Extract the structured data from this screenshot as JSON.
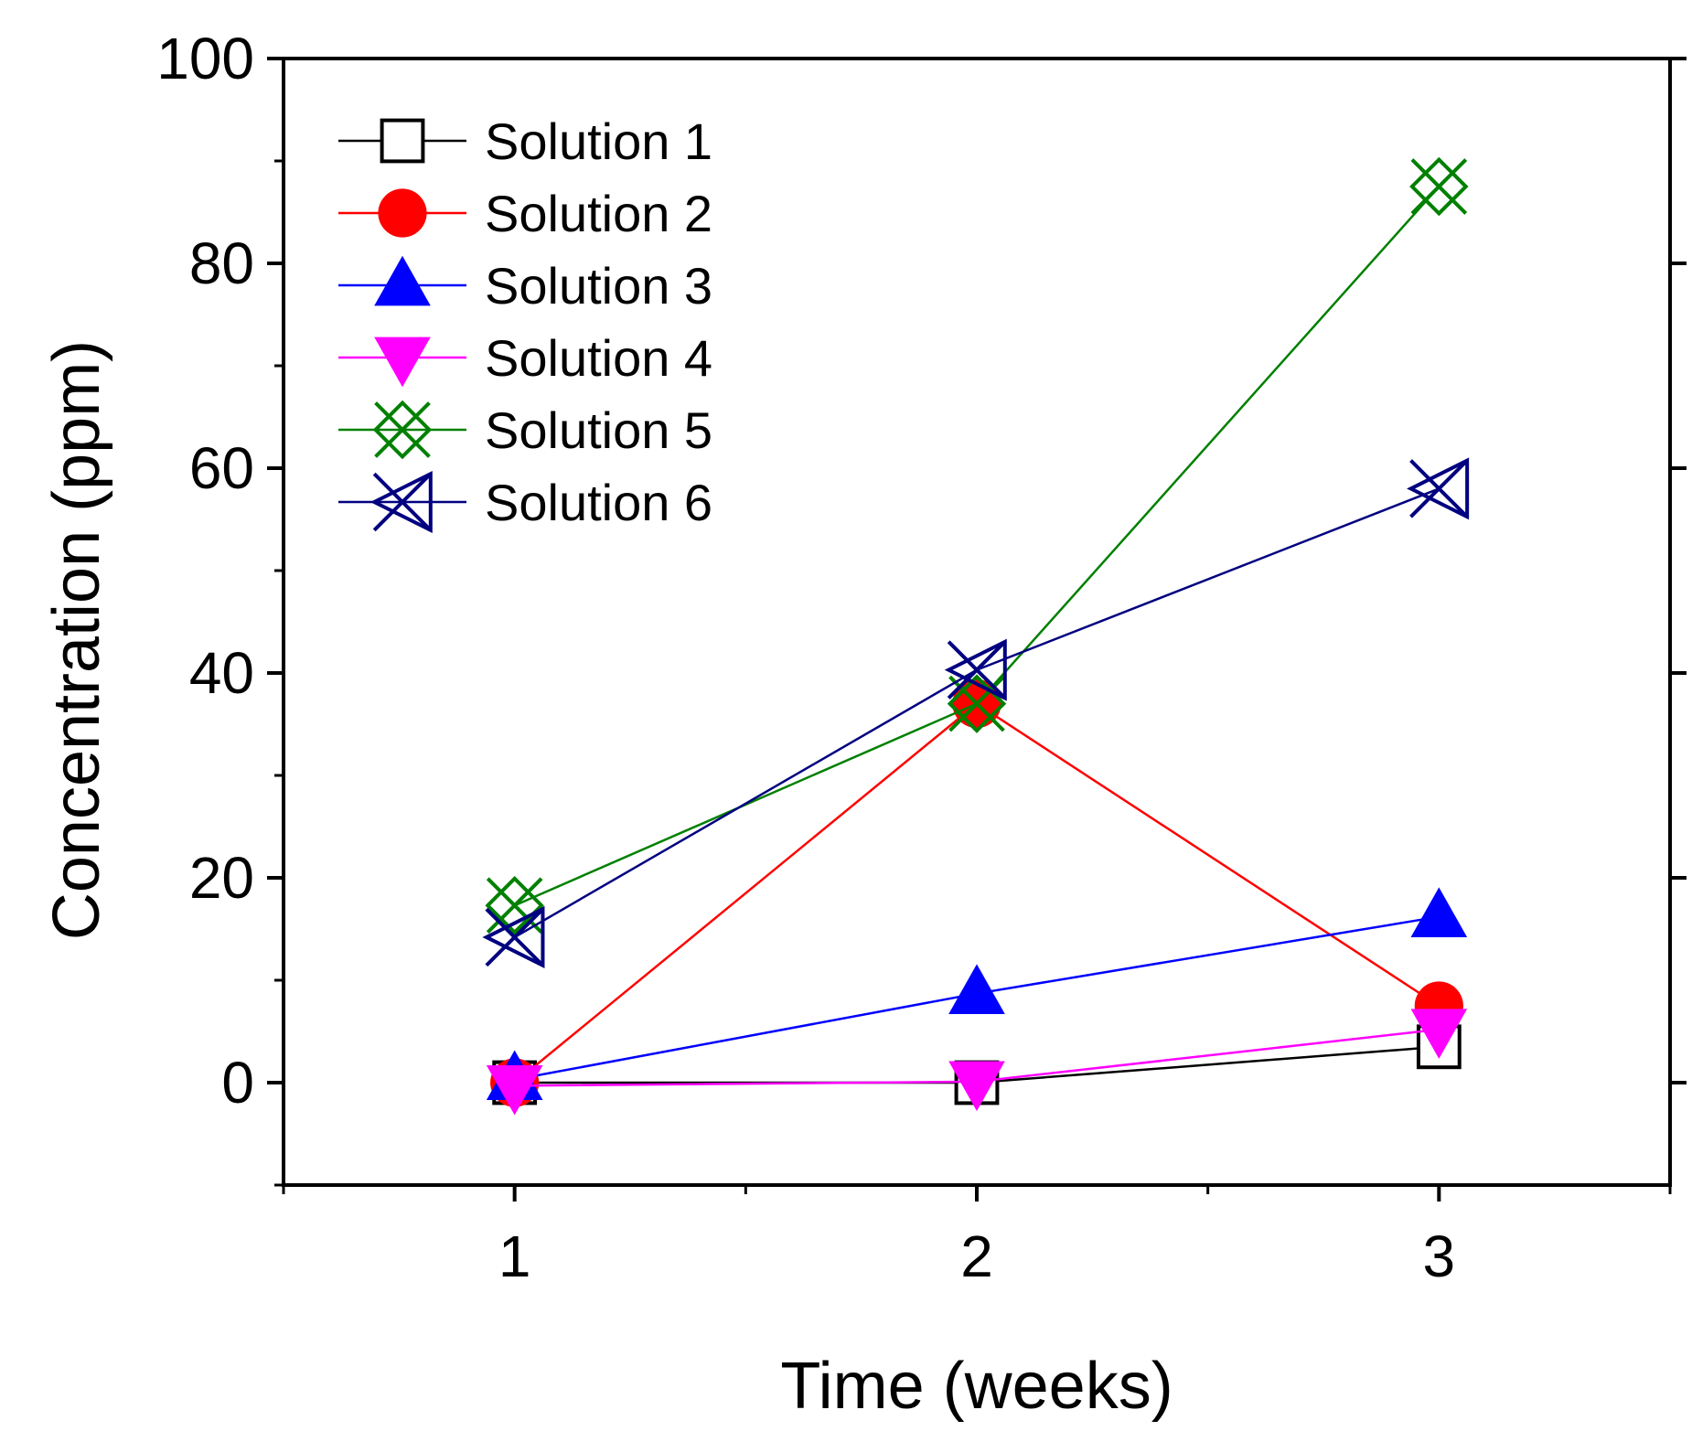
{
  "chart_data": {
    "type": "line",
    "title": "",
    "xlabel": "Time (weeks)",
    "ylabel": "Concentration (ppm)",
    "xlim": [
      0.5,
      3.5
    ],
    "ylim": [
      -10,
      100
    ],
    "x": [
      1,
      2,
      3
    ],
    "xticks": [
      1,
      2,
      3
    ],
    "xtick_labels": [
      "1",
      "2",
      "3"
    ],
    "yticks": [
      0,
      20,
      40,
      60,
      80,
      100
    ],
    "ytick_labels": [
      "0",
      "20",
      "40",
      "60",
      "80",
      "100"
    ],
    "grid": false,
    "legend_position": "top-left",
    "series": [
      {
        "name": "Solution 1",
        "values": [
          0,
          0,
          3.5
        ],
        "color": "#000000",
        "marker": "open-square"
      },
      {
        "name": "Solution 2",
        "values": [
          0,
          37,
          7.5
        ],
        "color": "#ff0000",
        "marker": "filled-circle"
      },
      {
        "name": "Solution 3",
        "values": [
          0.3,
          8.7,
          16.2
        ],
        "color": "#0000ff",
        "marker": "filled-triangle-up"
      },
      {
        "name": "Solution 4",
        "values": [
          -0.3,
          0.1,
          5.2
        ],
        "color": "#ff00ff",
        "marker": "filled-triangle-down"
      },
      {
        "name": "Solution 5",
        "values": [
          17.3,
          37,
          87.5
        ],
        "color": "#008000",
        "marker": "crossed-diamond"
      },
      {
        "name": "Solution 6",
        "values": [
          14.2,
          40.3,
          58
        ],
        "color": "#000080",
        "marker": "crossed-left-triangle"
      }
    ]
  }
}
